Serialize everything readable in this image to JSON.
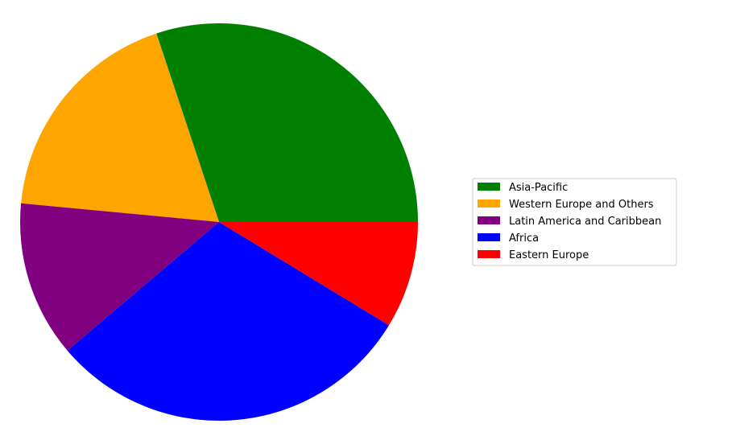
{
  "chart_data": {
    "type": "pie",
    "title": "",
    "slices": [
      {
        "label": "Asia-Pacific",
        "value": 30.1,
        "color": "#008000"
      },
      {
        "label": "Western Europe and Others",
        "value": 18.4,
        "color": "#FFA500"
      },
      {
        "label": "Latin America and Caribbean",
        "value": 12.7,
        "color": "#800080"
      },
      {
        "label": "Africa",
        "value": 30.1,
        "color": "#0000FF"
      },
      {
        "label": "Eastern Europe",
        "value": 8.7,
        "color": "#FF0000"
      }
    ],
    "start_angle_deg": 0,
    "direction": "counterclockwise",
    "legend_position": "right"
  }
}
